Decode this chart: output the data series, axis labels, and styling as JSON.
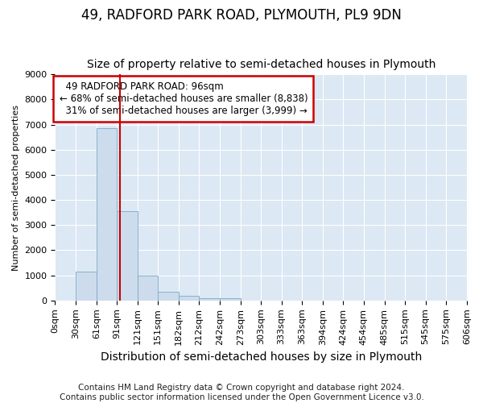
{
  "title": "49, RADFORD PARK ROAD, PLYMOUTH, PL9 9DN",
  "subtitle": "Size of property relative to semi-detached houses in Plymouth",
  "xlabel": "Distribution of semi-detached houses by size in Plymouth",
  "ylabel": "Number of semi-detached properties",
  "bar_color": "#ccdcec",
  "bar_edge_color": "#7aaac8",
  "background_color": "#dce8f4",
  "grid_color": "#ffffff",
  "bin_edges": [
    0,
    30,
    61,
    91,
    121,
    151,
    182,
    212,
    242,
    273,
    303,
    333,
    363,
    394,
    424,
    454,
    485,
    515,
    545,
    575,
    606
  ],
  "bin_labels": [
    "0sqm",
    "30sqm",
    "61sqm",
    "91sqm",
    "121sqm",
    "151sqm",
    "182sqm",
    "212sqm",
    "242sqm",
    "273sqm",
    "303sqm",
    "333sqm",
    "363sqm",
    "394sqm",
    "424sqm",
    "454sqm",
    "485sqm",
    "515sqm",
    "545sqm",
    "575sqm",
    "606sqm"
  ],
  "bar_heights": [
    0,
    1150,
    6850,
    3550,
    975,
    350,
    175,
    100,
    100,
    0,
    0,
    0,
    0,
    0,
    0,
    0,
    0,
    0,
    0,
    0
  ],
  "property_size": 96,
  "property_label": "49 RADFORD PARK ROAD: 96sqm",
  "pct_smaller": 68,
  "n_smaller": 8838,
  "pct_larger": 31,
  "n_larger": 3999,
  "red_line_color": "#cc0000",
  "annotation_box_color": "#ffffff",
  "annotation_box_edge": "#cc0000",
  "ylim": [
    0,
    9000
  ],
  "yticks": [
    0,
    1000,
    2000,
    3000,
    4000,
    5000,
    6000,
    7000,
    8000,
    9000
  ],
  "footer_text": "Contains HM Land Registry data © Crown copyright and database right 2024.\nContains public sector information licensed under the Open Government Licence v3.0.",
  "title_fontsize": 12,
  "subtitle_fontsize": 10,
  "xlabel_fontsize": 10,
  "ylabel_fontsize": 8,
  "tick_fontsize": 8,
  "footer_fontsize": 7.5
}
